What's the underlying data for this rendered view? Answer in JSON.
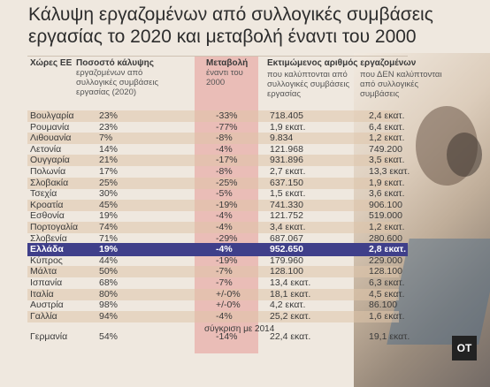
{
  "title": "Κάλυψη εργαζομένων από συλλογικές συμβάσεις εργασίας το 2020 και μεταβολή έναντι του 2000",
  "headers": {
    "country": "Χώρες ΕΕ",
    "coverage": "Ποσοστό κάλυψης",
    "coverage_sub": "εργαζομένων από συλλογικές συμβάσεις εργασίας (2020)",
    "change": "Μεταβολή",
    "change_sub": "έναντι του 2000",
    "estimate": "Εκτιμώμενος αριθμός εργαζομένων",
    "covered_sub": "που καλύπτονται από συλλογικές συμβάσεις εργασίας",
    "not_covered_sub": "που ΔΕΝ καλύπτονται από συλλογικές συμβάσεις"
  },
  "note": "σύγκριση με 2014",
  "logo": "OT",
  "colors": {
    "highlight_row": "#3f3f8a",
    "change_column": "#e9b8b2"
  },
  "chart_data": {
    "type": "table",
    "title": "Κάλυψη εργαζομένων από συλλογικές συμβάσεις εργασίας το 2020 και μεταβολή έναντι του 2000",
    "columns": [
      "Χώρες ΕΕ",
      "Ποσοστό κάλυψης",
      "Μεταβολή",
      "που καλύπτονται",
      "που ΔΕΝ καλύπτονται"
    ],
    "rows": [
      [
        "Βουλγαρία",
        "23%",
        "-33%",
        "718.405",
        "2,4 εκατ."
      ],
      [
        "Ρουμανία",
        "23%",
        "-77%",
        "1,9 εκατ.",
        "6,4 εκατ."
      ],
      [
        "Λιθουανία",
        "7%",
        "-8%",
        "9.834",
        "1,2 εκατ."
      ],
      [
        "Λετονία",
        "14%",
        "-4%",
        "121.968",
        "749.200"
      ],
      [
        "Ουγγαρία",
        "21%",
        "-17%",
        "931.896",
        "3,5 εκατ."
      ],
      [
        "Πολωνία",
        "17%",
        "-8%",
        "2,7 εκατ.",
        "13,3 εκατ."
      ],
      [
        "Σλοβακία",
        "25%",
        "-25%",
        "637.150",
        "1,9 εκατ."
      ],
      [
        "Τσεχία",
        "30%",
        "-5%",
        "1,5 εκατ.",
        "3,6 εκατ."
      ],
      [
        "Κροατία",
        "45%",
        "-19%",
        "741.330",
        "906.100"
      ],
      [
        "Εσθονία",
        "19%",
        "-4%",
        "121.752",
        "519.000"
      ],
      [
        "Πορτογαλία",
        "74%",
        "-4%",
        "3,4 εκατ.",
        "1,2 εκατ."
      ],
      [
        "Σλοβενία",
        "71%",
        "-29%",
        "687.067",
        "280.600"
      ],
      [
        "Ελλάδα",
        "19%",
        "-4%",
        "952.650",
        "2,8 εκατ."
      ],
      [
        "Κύπρος",
        "44%",
        "-19%",
        "179.960",
        "229.000"
      ],
      [
        "Μάλτα",
        "50%",
        "-7%",
        "128.100",
        "128.100"
      ],
      [
        "Ισπανία",
        "68%",
        "-7%",
        "13,4 εκατ.",
        "6,3 εκατ."
      ],
      [
        "Ιταλία",
        "80%",
        "+/-0%",
        "18,1 εκατ.",
        "4,5 εκατ."
      ],
      [
        "Αυστρία",
        "98%",
        "+/-0%",
        "4,2 εκατ.",
        "86.100"
      ],
      [
        "Γαλλία",
        "94%",
        "-4%",
        "25,2 εκατ.",
        "1,6 εκατ."
      ],
      [
        "Γερμανία",
        "54%",
        "-14%",
        "22,4 εκατ.",
        "19,1 εκατ."
      ]
    ],
    "highlight_row": "Ελλάδα"
  }
}
